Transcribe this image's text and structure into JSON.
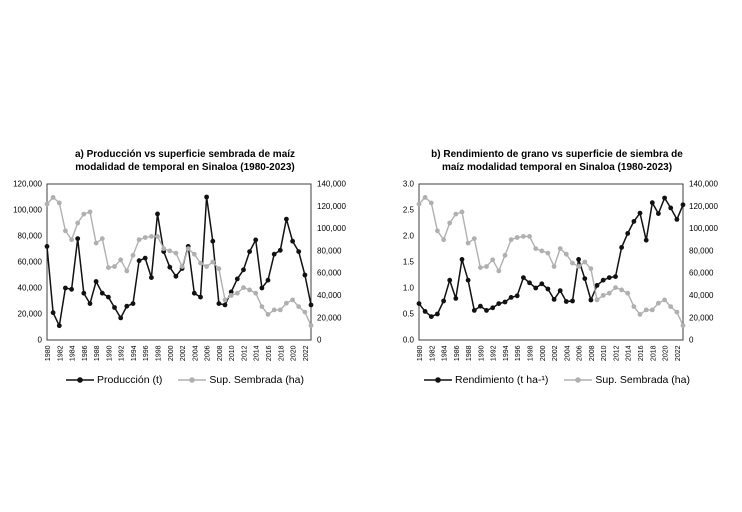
{
  "page": {
    "background": "#ffffff"
  },
  "chart_data": [
    {
      "id": "produccion-vs-superficie",
      "type": "line",
      "title_line1": "a) Producción vs superficie sembrada de maíz",
      "title_line2": "modalidad  de temporal en Sinaloa (1980-2023)",
      "grid": false,
      "legend_position": "bottom",
      "x": [
        1980,
        1981,
        1982,
        1983,
        1984,
        1985,
        1986,
        1987,
        1988,
        1989,
        1990,
        1991,
        1992,
        1993,
        1994,
        1995,
        1996,
        1997,
        1998,
        1999,
        2000,
        2001,
        2002,
        2003,
        2004,
        2005,
        2006,
        2007,
        2008,
        2009,
        2010,
        2011,
        2012,
        2013,
        2014,
        2015,
        2016,
        2017,
        2018,
        2019,
        2020,
        2021,
        2022,
        2023
      ],
      "x_tick_labels": [
        "1980",
        "1982",
        "1984",
        "1986",
        "1988",
        "1990",
        "1992",
        "1994",
        "1996",
        "1998",
        "2000",
        "2002",
        "2004",
        "2006",
        "2008",
        "2010",
        "2012",
        "2014",
        "2016",
        "2018",
        "2020",
        "2022"
      ],
      "left_axis": {
        "min": 0,
        "max": 120000,
        "step": 20000,
        "tick_labels": [
          "0",
          "20,000",
          "40,000",
          "60,000",
          "80,000",
          "100,000",
          "120,000"
        ]
      },
      "right_axis": {
        "min": 0,
        "max": 140000,
        "step": 20000,
        "tick_labels": [
          "0",
          "20,000",
          "40,000",
          "60,000",
          "80,000",
          "100,000",
          "120,000",
          "140,000"
        ]
      },
      "series": [
        {
          "name": "Producción (t)",
          "axis": "left",
          "color": "#111111",
          "line_width": 1.5,
          "marker_r": 2.4,
          "values": [
            72000,
            21000,
            11000,
            40000,
            39000,
            78000,
            36000,
            28000,
            45000,
            36000,
            33000,
            25000,
            17000,
            26000,
            28000,
            61000,
            63000,
            48000,
            97000,
            68000,
            56000,
            49000,
            55000,
            72000,
            36000,
            33000,
            110000,
            76000,
            28000,
            27000,
            37000,
            47000,
            54000,
            68000,
            77000,
            40000,
            46000,
            66000,
            69000,
            93000,
            76000,
            68000,
            50000,
            27000
          ]
        },
        {
          "name": "Sup. Sembrada (ha)",
          "axis": "right",
          "color": "#b0b0b0",
          "line_width": 1.4,
          "marker_r": 2.4,
          "values": [
            122000,
            128000,
            123000,
            98000,
            90000,
            105000,
            113000,
            115000,
            87000,
            91000,
            65000,
            66000,
            72000,
            62000,
            76000,
            90000,
            92000,
            93000,
            93000,
            82000,
            80000,
            78000,
            66000,
            82000,
            77000,
            69000,
            66000,
            70000,
            64000,
            36000,
            40000,
            42000,
            47000,
            45000,
            42000,
            30000,
            23000,
            27000,
            27000,
            33000,
            36000,
            30000,
            25000,
            13000
          ]
        }
      ]
    },
    {
      "id": "rendimiento-vs-superficie",
      "type": "line",
      "title_line1": "b) Rendimiento de grano vs superficie de siembra de",
      "title_line2": "maíz modalidad temporal en Sinaloa (1980-2023)",
      "grid": false,
      "legend_position": "bottom",
      "x": [
        1980,
        1981,
        1982,
        1983,
        1984,
        1985,
        1986,
        1987,
        1988,
        1989,
        1990,
        1991,
        1992,
        1993,
        1994,
        1995,
        1996,
        1997,
        1998,
        1999,
        2000,
        2001,
        2002,
        2003,
        2004,
        2005,
        2006,
        2007,
        2008,
        2009,
        2010,
        2011,
        2012,
        2013,
        2014,
        2015,
        2016,
        2017,
        2018,
        2019,
        2020,
        2021,
        2022,
        2023
      ],
      "x_tick_labels": [
        "1980",
        "1982",
        "1984",
        "1986",
        "1988",
        "1990",
        "1992",
        "1994",
        "1996",
        "1998",
        "2000",
        "2002",
        "2004",
        "2006",
        "2008",
        "2010",
        "2012",
        "2014",
        "2016",
        "2018",
        "2020",
        "2022"
      ],
      "left_axis": {
        "min": 0,
        "max": 3.0,
        "step": 0.5,
        "tick_labels": [
          "0.0",
          "0.5",
          "1.0",
          "1.5",
          "2.0",
          "2.5",
          "3.0"
        ]
      },
      "right_axis": {
        "min": 0,
        "max": 140000,
        "step": 20000,
        "tick_labels": [
          "0",
          "20,000",
          "40,000",
          "60,000",
          "80,000",
          "100,000",
          "120,000",
          "140,000"
        ]
      },
      "series": [
        {
          "name": "Rendimiento (t ha-¹)",
          "axis": "left",
          "color": "#111111",
          "line_width": 1.5,
          "marker_r": 2.4,
          "values": [
            0.7,
            0.55,
            0.45,
            0.5,
            0.75,
            1.15,
            0.8,
            1.55,
            1.15,
            0.57,
            0.65,
            0.57,
            0.62,
            0.7,
            0.73,
            0.82,
            0.85,
            1.2,
            1.1,
            1.0,
            1.08,
            0.98,
            0.78,
            0.95,
            0.74,
            0.75,
            1.55,
            1.18,
            0.77,
            1.05,
            1.15,
            1.2,
            1.22,
            1.78,
            2.05,
            2.28,
            2.44,
            1.92,
            2.64,
            2.43,
            2.73,
            2.54,
            2.32,
            2.6
          ]
        },
        {
          "name": "Sup. Sembrada (ha)",
          "axis": "right",
          "color": "#b0b0b0",
          "line_width": 1.4,
          "marker_r": 2.4,
          "values": [
            122000,
            128000,
            123000,
            98000,
            90000,
            105000,
            113000,
            115000,
            87000,
            91000,
            65000,
            66000,
            72000,
            62000,
            76000,
            90000,
            92000,
            93000,
            93000,
            82000,
            80000,
            78000,
            66000,
            82000,
            77000,
            69000,
            66000,
            70000,
            64000,
            36000,
            40000,
            42000,
            47000,
            45000,
            42000,
            30000,
            23000,
            27000,
            27000,
            33000,
            36000,
            30000,
            25000,
            13000
          ]
        }
      ]
    }
  ]
}
